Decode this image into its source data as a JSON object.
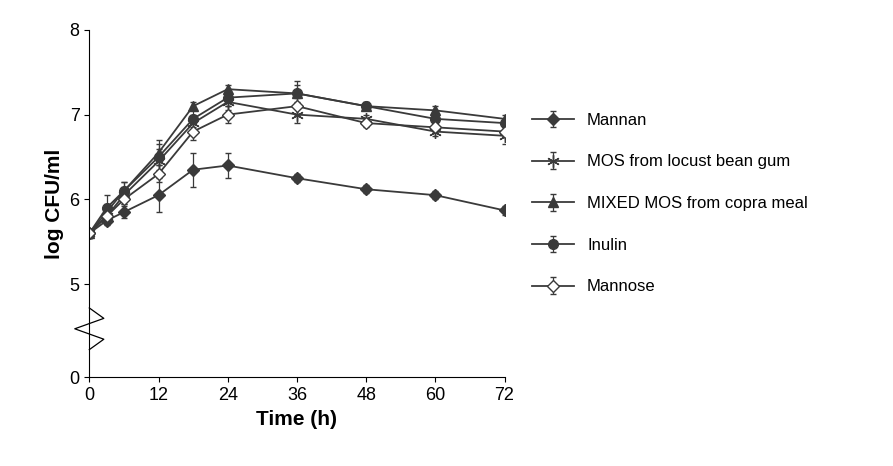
{
  "chart_data": {
    "type": "line",
    "x_label": "Time (h)",
    "y_label": "log CFU/ml",
    "x": [
      0,
      3,
      6,
      12,
      18,
      24,
      36,
      48,
      60,
      72
    ],
    "series": [
      {
        "name": "Mannan",
        "color": "#3a3a3a",
        "marker": "diamond",
        "values": [
          5.6,
          5.75,
          5.85,
          6.05,
          6.35,
          6.4,
          6.25,
          6.12,
          6.05,
          5.87
        ],
        "errors": [
          0.05,
          0.05,
          0.07,
          0.2,
          0.2,
          0.15,
          0.05,
          0.05,
          0.05,
          0.05
        ]
      },
      {
        "name": "MOS from locust bean gum",
        "color": "#3a3a3a",
        "marker": "asterisk",
        "values": [
          5.6,
          5.8,
          6.05,
          6.45,
          6.9,
          7.15,
          7.0,
          6.95,
          6.8,
          6.75
        ],
        "errors": [
          0.05,
          0.05,
          0.1,
          0.15,
          0.1,
          0.1,
          0.1,
          0.05,
          0.05,
          0.1
        ]
      },
      {
        "name": "MIXED MOS from copra meal",
        "color": "#3a3a3a",
        "marker": "triangle",
        "values": [
          5.6,
          5.85,
          6.1,
          6.55,
          7.1,
          7.3,
          7.25,
          7.1,
          7.05,
          6.95
        ],
        "errors": [
          0.05,
          0.1,
          0.1,
          0.15,
          0.05,
          0.05,
          0.15,
          0.05,
          0.05,
          0.05
        ]
      },
      {
        "name": "Inulin",
        "color": "#3a3a3a",
        "marker": "circle",
        "values": [
          5.6,
          5.9,
          6.1,
          6.5,
          6.95,
          7.2,
          7.25,
          7.1,
          6.95,
          6.9
        ],
        "errors": [
          0.05,
          0.15,
          0.1,
          0.15,
          0.1,
          0.1,
          0.1,
          0.05,
          0.05,
          0.05
        ]
      },
      {
        "name": "Mannose",
        "color": "#3a3a3a",
        "marker": "open_diamond",
        "values": [
          5.6,
          5.8,
          6.0,
          6.3,
          6.8,
          7.0,
          7.1,
          6.9,
          6.85,
          6.8
        ],
        "errors": [
          0.05,
          0.05,
          0.05,
          0.1,
          0.1,
          0.1,
          0.1,
          0.05,
          0.05,
          0.05
        ]
      }
    ],
    "xlim": [
      0,
      72
    ],
    "xticks": [
      0,
      12,
      24,
      36,
      48,
      60,
      72
    ],
    "ylim": [
      0,
      8
    ],
    "yticks": [
      0,
      5,
      6,
      7,
      8
    ],
    "grid": false,
    "legend": "right"
  }
}
